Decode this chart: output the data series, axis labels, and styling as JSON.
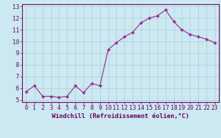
{
  "x": [
    0,
    1,
    2,
    3,
    4,
    5,
    6,
    7,
    8,
    9,
    10,
    11,
    12,
    13,
    14,
    15,
    16,
    17,
    18,
    19,
    20,
    21,
    22,
    23
  ],
  "y": [
    5.7,
    6.2,
    5.3,
    5.3,
    5.2,
    5.3,
    6.2,
    5.6,
    6.4,
    6.2,
    9.3,
    9.9,
    10.4,
    10.8,
    11.6,
    12.0,
    12.2,
    12.7,
    11.7,
    11.0,
    10.6,
    10.4,
    10.2,
    9.9
  ],
  "line_color": "#993399",
  "marker_color": "#993399",
  "bg_color": "#cce8f0",
  "grid_color": "#aaccdd",
  "xlabel": "Windchill (Refroidissement éolien,°C)",
  "xlim": [
    -0.5,
    23.5
  ],
  "ylim": [
    4.8,
    13.2
  ],
  "yticks": [
    5,
    6,
    7,
    8,
    9,
    10,
    11,
    12,
    13
  ],
  "xticks": [
    0,
    1,
    2,
    3,
    4,
    5,
    6,
    7,
    8,
    9,
    10,
    11,
    12,
    13,
    14,
    15,
    16,
    17,
    18,
    19,
    20,
    21,
    22,
    23
  ],
  "tick_color": "#660066",
  "label_color": "#660066",
  "axis_color": "#660066",
  "font_size": 6.0,
  "xlabel_fontsize": 6.5
}
